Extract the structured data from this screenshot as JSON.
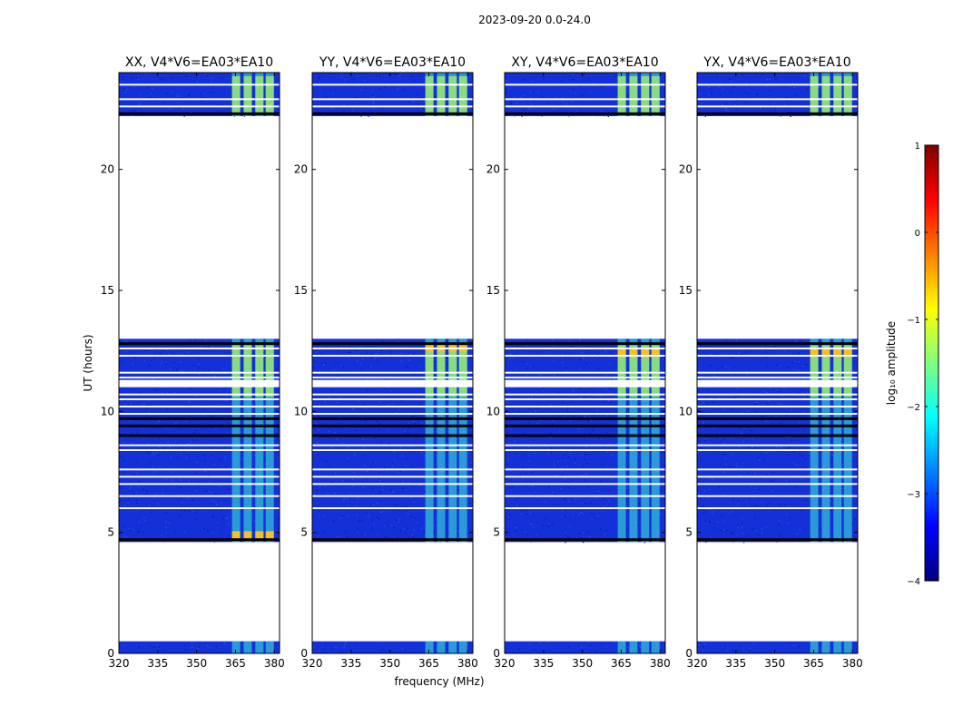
{
  "figure": {
    "suptitle": "2023-09-20 0.0-24.0",
    "xlabel": "frequency (MHz)",
    "ylabel": "UT (hours)",
    "colorbar_label": "log₁₀ amplitude"
  },
  "colors": {
    "band_fill": "#1430d8",
    "noise_dark": "#0a1a9a",
    "rfi_mid": "#35c8d8",
    "rfi_high": "#a8f060",
    "rfi_peak": "#f5c020",
    "flag_white": "#ffffff",
    "flag_black": "#000000"
  },
  "chart_data": [
    {
      "type": "heatmap",
      "title": "XX, V4*V6=EA03*EA10",
      "xlim": [
        320,
        382
      ],
      "ylim": [
        0,
        24
      ],
      "xticks": [
        320,
        335,
        350,
        365,
        380
      ],
      "yticks": [
        0,
        5,
        10,
        15,
        20
      ],
      "data_segments_ut": [
        [
          0.0,
          0.5
        ],
        [
          4.6,
          13.0
        ],
        [
          22.2,
          24.0
        ]
      ],
      "white_flag_lines_ut": [
        6.0,
        6.5,
        7.0,
        7.3,
        7.6,
        8.4,
        8.6,
        9.9,
        10.2,
        10.5,
        10.7,
        11.4,
        11.6,
        12.3,
        12.6,
        22.6,
        22.9,
        23.5
      ],
      "black_flag_lines_ut": [
        4.7,
        9.0,
        9.4,
        9.7,
        12.8,
        22.3
      ],
      "white_flag_bands_ut": [
        [
          11.0,
          11.3
        ]
      ],
      "rfi_channels_mhz": [
        364.0,
        368.5,
        373.0,
        377.0
      ],
      "rfi_peak_ut": 4.9
    },
    {
      "type": "heatmap",
      "title": "YY, V4*V6=EA03*EA10",
      "xlim": [
        320,
        382
      ],
      "ylim": [
        0,
        24
      ],
      "xticks": [
        320,
        335,
        350,
        365,
        380
      ],
      "yticks": [
        0,
        5,
        10,
        15,
        20
      ],
      "data_segments_ut": [
        [
          0.0,
          0.5
        ],
        [
          4.6,
          13.0
        ],
        [
          22.2,
          24.0
        ]
      ],
      "white_flag_lines_ut": [
        6.0,
        6.5,
        7.0,
        7.3,
        7.6,
        8.4,
        8.6,
        9.9,
        10.2,
        10.5,
        10.7,
        11.4,
        11.6,
        12.3,
        12.6,
        22.6,
        22.9,
        23.5
      ],
      "black_flag_lines_ut": [
        4.7,
        9.0,
        9.4,
        9.7,
        12.8,
        22.3
      ],
      "white_flag_bands_ut": [
        [
          11.0,
          11.3
        ]
      ],
      "rfi_channels_mhz": [
        364.0,
        368.5,
        373.0,
        377.0
      ],
      "rfi_peak_ut": 12.6
    },
    {
      "type": "heatmap",
      "title": "XY, V4*V6=EA03*EA10",
      "xlim": [
        320,
        382
      ],
      "ylim": [
        0,
        24
      ],
      "xticks": [
        320,
        335,
        350,
        365,
        380
      ],
      "yticks": [
        0,
        5,
        10,
        15,
        20
      ],
      "data_segments_ut": [
        [
          0.0,
          0.5
        ],
        [
          4.6,
          13.0
        ],
        [
          22.2,
          24.0
        ]
      ],
      "white_flag_lines_ut": [
        6.0,
        6.5,
        7.0,
        7.3,
        7.6,
        8.4,
        8.6,
        9.9,
        10.2,
        10.5,
        10.7,
        11.4,
        11.6,
        12.3,
        12.6,
        22.6,
        22.9,
        23.5
      ],
      "black_flag_lines_ut": [
        4.7,
        9.0,
        9.4,
        9.7,
        12.8,
        22.3
      ],
      "white_flag_bands_ut": [
        [
          11.0,
          11.3
        ]
      ],
      "rfi_channels_mhz": [
        364.0,
        368.5,
        373.0,
        377.0
      ],
      "rfi_peak_ut": 12.4
    },
    {
      "type": "heatmap",
      "title": "YX, V4*V6=EA03*EA10",
      "xlim": [
        320,
        382
      ],
      "ylim": [
        0,
        24
      ],
      "xticks": [
        320,
        335,
        350,
        365,
        380
      ],
      "yticks": [
        0,
        5,
        10,
        15,
        20
      ],
      "data_segments_ut": [
        [
          0.0,
          0.5
        ],
        [
          4.6,
          13.0
        ],
        [
          22.2,
          24.0
        ]
      ],
      "white_flag_lines_ut": [
        6.0,
        6.5,
        7.0,
        7.3,
        7.6,
        8.4,
        8.6,
        9.9,
        10.2,
        10.5,
        10.7,
        11.4,
        11.6,
        12.3,
        12.6,
        22.6,
        22.9,
        23.5
      ],
      "black_flag_lines_ut": [
        4.7,
        9.0,
        9.4,
        9.7,
        12.8,
        22.3
      ],
      "white_flag_bands_ut": [
        [
          11.0,
          11.3
        ]
      ],
      "rfi_channels_mhz": [
        364.0,
        368.5,
        373.0,
        377.0
      ],
      "rfi_peak_ut": 12.4
    },
    {
      "type": "colorbar",
      "colormap": "jet",
      "range": [
        -4,
        1
      ],
      "ticks": [
        1,
        0,
        -1,
        -2,
        -3,
        -4
      ],
      "tick_labels": [
        "1",
        "0",
        "−1",
        "−2",
        "−3",
        "−4"
      ],
      "stops": [
        "#00007f",
        "#0000ff",
        "#007fff",
        "#00ffff",
        "#7fff7f",
        "#ffff00",
        "#ff7f00",
        "#ff0000",
        "#7f0000"
      ]
    }
  ]
}
